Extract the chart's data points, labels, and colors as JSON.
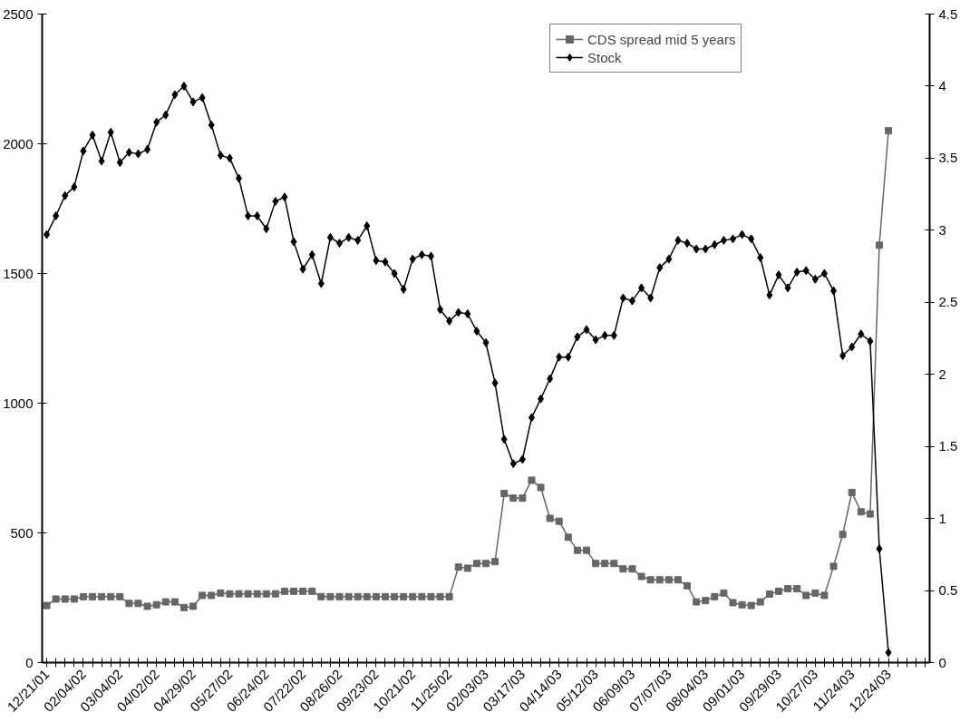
{
  "chart_data": {
    "type": "line",
    "categories": [
      "12/21/01",
      null,
      null,
      null,
      "02/04/02",
      null,
      null,
      null,
      "03/04/02",
      null,
      null,
      null,
      "04/02/02",
      null,
      null,
      null,
      "04/29/02",
      null,
      null,
      null,
      "05/27/02",
      null,
      null,
      null,
      "06/24/02",
      null,
      null,
      null,
      "07/22/02",
      null,
      null,
      null,
      "08/26/02",
      null,
      null,
      null,
      "09/23/02",
      null,
      null,
      null,
      "10/21/02",
      null,
      null,
      null,
      "11/25/02",
      null,
      null,
      null,
      "02/03/03",
      null,
      null,
      null,
      "03/17/03",
      null,
      null,
      null,
      "04/14/03",
      null,
      null,
      null,
      "05/12/03",
      null,
      null,
      null,
      "06/09/03",
      null,
      null,
      null,
      "07/07/03",
      null,
      null,
      null,
      "08/04/03",
      null,
      null,
      null,
      "09/01/03",
      null,
      null,
      null,
      "09/29/03",
      null,
      null,
      null,
      "10/27/03",
      null,
      null,
      null,
      "11/24/03",
      null,
      null,
      null,
      "12/24/03",
      null,
      null,
      null,
      null
    ],
    "series": [
      {
        "name": "CDS spread mid 5 years",
        "color": "#666666",
        "marker": "square",
        "values": [
          220,
          245,
          245,
          245,
          254,
          254,
          254,
          254,
          254,
          228,
          228,
          217,
          223,
          234,
          234,
          212,
          217,
          259,
          259,
          268,
          265,
          265,
          265,
          265,
          265,
          265,
          275,
          275,
          275,
          275,
          254,
          254,
          254,
          254,
          254,
          254,
          254,
          254,
          254,
          254,
          254,
          254,
          254,
          254,
          254,
          368,
          364,
          382,
          382,
          389,
          652,
          634,
          634,
          703,
          675,
          556,
          545,
          483,
          433,
          433,
          382,
          382,
          382,
          361,
          361,
          332,
          319,
          319,
          319,
          319,
          296,
          234,
          239,
          254,
          268,
          231,
          223,
          220,
          234,
          264,
          275,
          285,
          285,
          259,
          268,
          259,
          371,
          494,
          656,
          581,
          573,
          1609,
          2050,
          null,
          null,
          null,
          null
        ]
      },
      {
        "name": "Stock",
        "color": "#000000",
        "marker": "diamond",
        "axis": "y2",
        "values": [
          2.97,
          3.1,
          3.24,
          3.3,
          3.55,
          3.66,
          3.48,
          3.68,
          3.47,
          3.54,
          3.53,
          3.56,
          3.75,
          3.8,
          3.94,
          4.0,
          3.89,
          3.92,
          3.73,
          3.52,
          3.5,
          3.36,
          3.1,
          3.1,
          3.01,
          3.2,
          3.23,
          2.92,
          2.73,
          2.83,
          2.63,
          2.95,
          2.91,
          2.95,
          2.93,
          3.03,
          2.79,
          2.78,
          2.7,
          2.59,
          2.8,
          2.83,
          2.82,
          2.45,
          2.37,
          2.43,
          2.42,
          2.3,
          2.22,
          1.94,
          1.55,
          1.38,
          1.41,
          1.7,
          1.83,
          1.97,
          2.12,
          2.12,
          2.26,
          2.31,
          2.24,
          2.27,
          2.27,
          2.53,
          2.51,
          2.6,
          2.53,
          2.74,
          2.8,
          2.93,
          2.91,
          2.87,
          2.87,
          2.9,
          2.93,
          2.94,
          2.97,
          2.94,
          2.81,
          2.55,
          2.69,
          2.6,
          2.71,
          2.72,
          2.66,
          2.7,
          2.58,
          2.13,
          2.19,
          2.28,
          2.23,
          0.79,
          0.07,
          null,
          null,
          null,
          null
        ]
      }
    ],
    "ylim": [
      0,
      2500
    ],
    "yticks": [
      0,
      500,
      1000,
      1500,
      2000,
      2500
    ],
    "y2lim": [
      0,
      4.5
    ],
    "y2ticks": [
      0,
      0.5,
      1,
      1.5,
      2,
      2.5,
      3,
      3.5,
      4,
      4.5
    ],
    "grid": false,
    "legend": "top right",
    "line_style": "solid"
  }
}
